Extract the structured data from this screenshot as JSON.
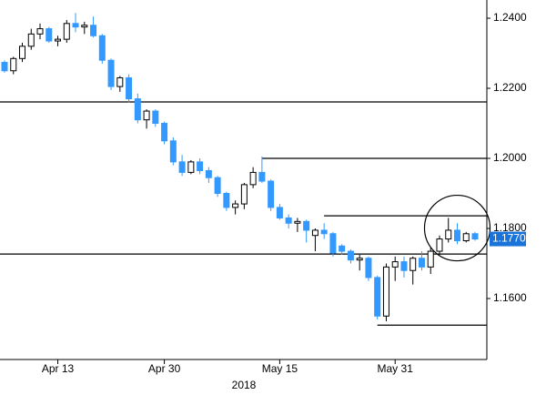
{
  "chart_data": {
    "type": "candlestick",
    "categories": [
      null,
      null,
      null,
      null,
      null,
      null,
      "Apr 13",
      null,
      null,
      null,
      null,
      null,
      null,
      null,
      null,
      null,
      null,
      null,
      "Apr 30",
      null,
      null,
      null,
      null,
      null,
      null,
      null,
      null,
      null,
      null,
      null,
      null,
      "May 15",
      null,
      null,
      null,
      null,
      null,
      null,
      null,
      null,
      null,
      null,
      null,
      null,
      "May 31",
      null,
      null,
      null,
      null,
      null,
      null,
      null,
      null,
      null
    ],
    "x_sublabel": "2018",
    "open": [
      1.2274,
      1.225,
      1.2285,
      1.232,
      1.2355,
      1.237,
      1.2335,
      1.234,
      1.2385,
      1.2375,
      1.238,
      1.235,
      1.228,
      1.2205,
      1.223,
      1.217,
      1.211,
      1.2135,
      1.21,
      1.205,
      1.199,
      1.196,
      1.199,
      1.1965,
      1.1945,
      1.19,
      1.186,
      1.187,
      1.1925,
      1.196,
      1.1935,
      1.186,
      1.183,
      1.1815,
      1.182,
      1.178,
      1.1795,
      1.1785,
      1.175,
      1.1735,
      1.171,
      1.1715,
      1.166,
      1.155,
      1.169,
      1.1705,
      1.168,
      1.1715,
      1.169,
      1.1735,
      1.177,
      1.1795,
      1.1765,
      1.1785
    ],
    "high": [
      1.228,
      1.229,
      1.233,
      1.237,
      1.2385,
      1.2375,
      1.235,
      1.2395,
      1.2415,
      1.239,
      1.2405,
      1.2355,
      1.2285,
      1.2235,
      1.224,
      1.2185,
      1.214,
      1.214,
      1.2105,
      1.206,
      1.201,
      1.1995,
      1.2,
      1.1975,
      1.195,
      1.1905,
      1.188,
      1.193,
      1.1975,
      1.2005,
      1.194,
      1.187,
      1.184,
      1.183,
      1.1825,
      1.18,
      1.1815,
      1.179,
      1.1755,
      1.174,
      1.1725,
      1.172,
      1.1665,
      1.17,
      1.172,
      1.172,
      1.172,
      1.1735,
      1.1745,
      1.178,
      1.183,
      1.1815,
      1.179,
      1.179
    ],
    "low": [
      1.2245,
      1.224,
      1.2275,
      1.231,
      1.234,
      1.233,
      1.232,
      1.233,
      1.236,
      1.2355,
      1.2345,
      1.227,
      1.2195,
      1.219,
      1.216,
      1.21,
      1.2085,
      1.209,
      1.204,
      1.198,
      1.195,
      1.1955,
      1.1955,
      1.193,
      1.189,
      1.185,
      1.184,
      1.1855,
      1.1915,
      1.193,
      1.185,
      1.1825,
      1.18,
      1.179,
      1.176,
      1.1735,
      1.177,
      1.172,
      1.1725,
      1.17,
      1.168,
      1.165,
      1.154,
      1.1535,
      1.165,
      1.166,
      1.164,
      1.168,
      1.167,
      1.1725,
      1.176,
      1.1755,
      1.176,
      1.1765
    ],
    "close": [
      1.225,
      1.2285,
      1.232,
      1.2355,
      1.237,
      1.2335,
      1.234,
      1.2385,
      1.2375,
      1.238,
      1.235,
      1.228,
      1.2205,
      1.223,
      1.217,
      1.211,
      1.2135,
      1.21,
      1.205,
      1.199,
      1.196,
      1.199,
      1.1965,
      1.1945,
      1.19,
      1.186,
      1.187,
      1.1925,
      1.196,
      1.1935,
      1.186,
      1.183,
      1.1815,
      1.182,
      1.1795,
      1.1795,
      1.1785,
      1.173,
      1.1735,
      1.171,
      1.1715,
      1.166,
      1.155,
      1.169,
      1.1705,
      1.168,
      1.1715,
      1.169,
      1.1735,
      1.177,
      1.1795,
      1.1765,
      1.1785,
      1.177
    ],
    "up_color": "#ffffff",
    "down_color": "#3399ff",
    "ylim": [
      1.1426,
      1.2452
    ],
    "yticks": [
      {
        "value": 1.16,
        "label": "1.1600"
      },
      {
        "value": 1.18,
        "label": "1.1800"
      },
      {
        "value": 1.2,
        "label": "1.2000"
      },
      {
        "value": 1.22,
        "label": "1.2200"
      },
      {
        "value": 1.24,
        "label": "1.2400"
      }
    ],
    "levels": [
      {
        "value": 1.2161,
        "from": 0
      },
      {
        "value": 1.2,
        "from": 29
      },
      {
        "value": 1.1836,
        "from": 36
      },
      {
        "value": 1.1727,
        "from": 0
      },
      {
        "value": 1.1524,
        "from": 42
      }
    ],
    "last_price": 1.177,
    "last_price_label": "1.1770"
  }
}
